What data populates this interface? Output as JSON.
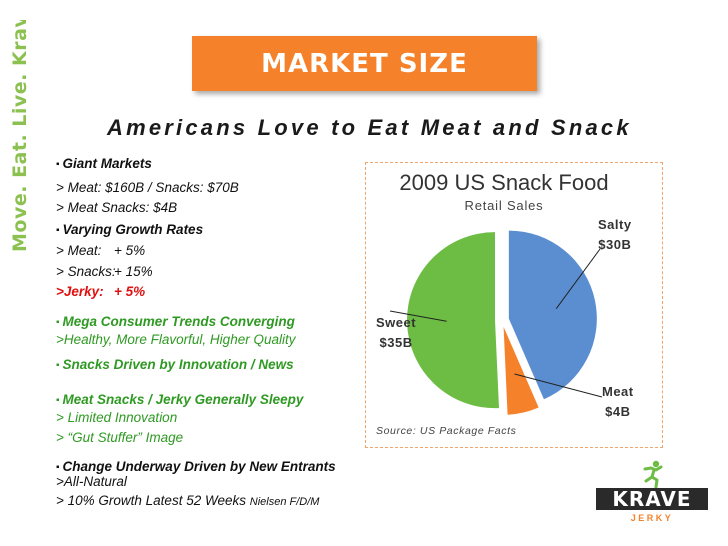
{
  "side_tag": "Move. Eat. Live. Krave.",
  "banner": {
    "title": "MARKET SIZE"
  },
  "subtitle": "Americans Love to Eat Meat and Snack",
  "bullets": {
    "giant_head": "Giant Markets",
    "giant_1": "> Meat: $160B / Snacks: $70B",
    "giant_2": "> Meat Snacks: $4B",
    "growth_head": "Varying Growth Rates",
    "growth_meat_label": "> Meat:",
    "growth_meat_value": "+  5%",
    "growth_snacks_label": "> Snacks:",
    "growth_snacks_value": "+ 15%",
    "growth_jerky_label": ">Jerky:",
    "growth_jerky_value": "+  5%",
    "trends_head": "Mega Consumer Trends Converging",
    "trends_1": ">Healthy, More Flavorful, Higher Quality",
    "innovation_head": "Snacks Driven by Innovation / News",
    "sleepy_head": "Meat Snacks / Jerky Generally Sleepy",
    "sleepy_1": "> Limited Innovation",
    "sleepy_2": "> “Gut Stuffer” Image",
    "change_head": "Change Underway Driven by New Entrants",
    "change_1": ">All-Natural",
    "change_2": "> 10% Growth Latest 52 Weeks",
    "change_2_note": "Nielsen F/D/M"
  },
  "chart_data": {
    "type": "pie",
    "title": "2009 US Snack Food",
    "subtitle": "Retail Sales",
    "source": "Source: US Package Facts",
    "slices": [
      {
        "name": "Salty",
        "label": "$30B",
        "value": 30,
        "color": "#5b8ed0"
      },
      {
        "name": "Meat",
        "label": "$4B",
        "value": 4,
        "color": "#f5822a"
      },
      {
        "name": "Sweet",
        "label": "$35B",
        "value": 35,
        "color": "#6dbd45"
      }
    ]
  },
  "logo": {
    "word": "KRAVE",
    "sub": "JERKY"
  }
}
